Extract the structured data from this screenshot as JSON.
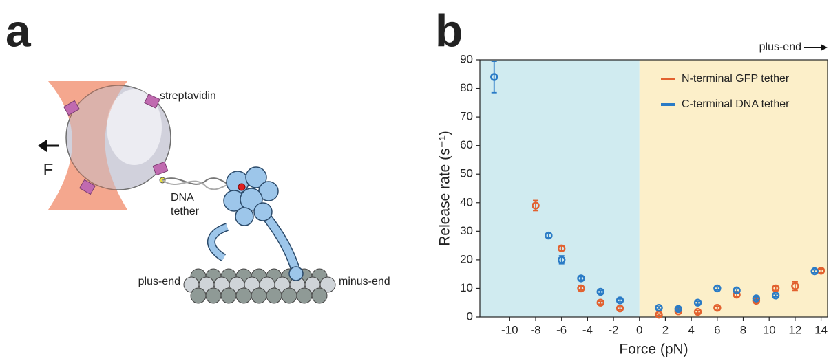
{
  "panel_labels": [
    "a",
    "b"
  ],
  "diagram": {
    "bead_label": "streptavidin",
    "force_label": "F",
    "tether_label": [
      "DNA",
      "tether"
    ],
    "left_end": "plus-end",
    "right_end": "minus-end"
  },
  "chart_data": {
    "type": "scatter",
    "xlabel": "Force (pN)",
    "ylabel": "Release rate (s⁻¹)",
    "annotation": "plus-end",
    "xlim": [
      -12.3,
      14.5
    ],
    "ylim": [
      0,
      90
    ],
    "xticks": [
      -10,
      -8,
      -6,
      -4,
      -2,
      0,
      2,
      4,
      6,
      8,
      10,
      12,
      14
    ],
    "yticks": [
      0,
      10,
      20,
      30,
      40,
      50,
      60,
      70,
      80,
      90
    ],
    "shading": {
      "split": 0,
      "left_color": "#d0ebf0",
      "right_color": "#fcefc9"
    },
    "legend": "upper right",
    "series": [
      {
        "name": "N-terminal GFP tether",
        "color": "#e2612f",
        "x": [
          -8,
          -6,
          -4.5,
          -3,
          -1.5,
          1.5,
          3,
          4.5,
          6,
          7.5,
          9,
          10.5,
          12,
          14
        ],
        "values": [
          39,
          24,
          10,
          5,
          3,
          0.8,
          2,
          1.8,
          3.2,
          7.8,
          5.7,
          10,
          10.8,
          16.2
        ],
        "errors": [
          1.8,
          0.8,
          0.6,
          0.5,
          0.5,
          0.3,
          0.4,
          0.4,
          0.5,
          0.8,
          0.6,
          0.7,
          1.5,
          0.6
        ]
      },
      {
        "name": "C-terminal DNA tether",
        "color": "#2a7bc6",
        "x": [
          -11.2,
          -7,
          -6,
          -4.5,
          -3,
          -1.5,
          1.5,
          3,
          4.5,
          6,
          7.5,
          9,
          10.5,
          13.5
        ],
        "values": [
          84,
          28.5,
          20,
          13.5,
          8.8,
          5.8,
          3.2,
          2.8,
          5,
          10,
          9.3,
          6.5,
          7.5,
          16
        ],
        "errors": [
          5.5,
          0.6,
          1.4,
          0.6,
          0.5,
          0.5,
          0.4,
          0.4,
          0.5,
          0.5,
          0.5,
          0.5,
          0.5,
          0.5
        ]
      }
    ]
  }
}
